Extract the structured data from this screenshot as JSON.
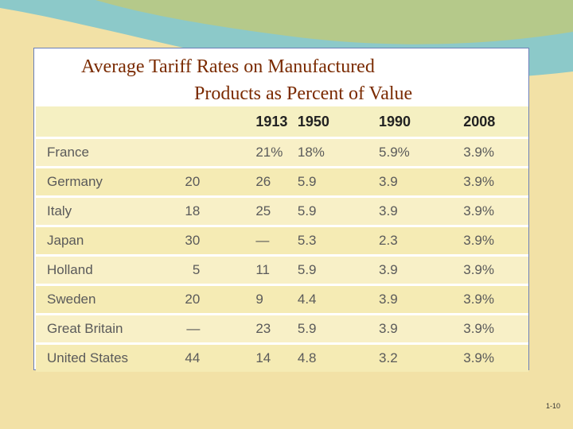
{
  "slide": {
    "title_line1": "Average Tariff Rates on Manufactured",
    "title_line2": "Products as Percent of Value",
    "slide_number": "1-10"
  },
  "table": {
    "headers": [
      "",
      "",
      "1913",
      "1950",
      "1990",
      "2008"
    ],
    "rows": [
      {
        "country": "France",
        "c0": "",
        "c1": "21%",
        "c2": "18%",
        "c3": "5.9%",
        "c4": "3.9%"
      },
      {
        "country": "Germany",
        "c0": "20",
        "c1": "26",
        "c2": "5.9",
        "c3": "3.9",
        "c4": "3.9%"
      },
      {
        "country": "Italy",
        "c0": "18",
        "c1": "25",
        "c2": "5.9",
        "c3": "3.9",
        "c4": "3.9%"
      },
      {
        "country": "Japan",
        "c0": "30",
        "c1": "—",
        "c2": "5.3",
        "c3": "2.3",
        "c4": "3.9%"
      },
      {
        "country": "Holland",
        "c0": "5",
        "c1": "11",
        "c2": "5.9",
        "c3": "3.9",
        "c4": "3.9%"
      },
      {
        "country": "Sweden",
        "c0": "20",
        "c1": "9",
        "c2": "4.4",
        "c3": "3.9",
        "c4": "3.9%"
      },
      {
        "country": "Great Britain",
        "c0": "—",
        "c1": "23",
        "c2": "5.9",
        "c3": "3.9",
        "c4": "3.9%"
      },
      {
        "country": "United States",
        "c0": "44",
        "c1": "14",
        "c2": "4.8",
        "c3": "3.2",
        "c4": "3.9%"
      }
    ]
  },
  "colors": {
    "background": "#f2e1a6",
    "swoosh_teal": "#8cc9c9",
    "swoosh_green": "#b5c98a",
    "title": "#7a2a00"
  }
}
